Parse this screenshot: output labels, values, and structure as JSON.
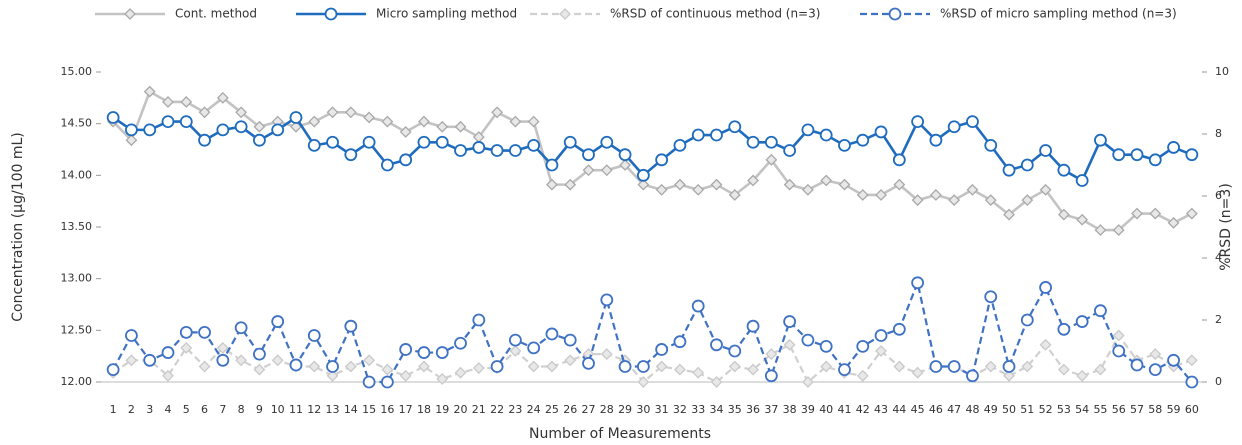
{
  "chart_data": {
    "type": "line",
    "x_label": "Number of Measurements",
    "y_label": "Concentration (µg/100 mL)",
    "y2_label": "%RSD (n=3)",
    "categories": [
      "1",
      "2",
      "3",
      "4",
      "5",
      "6",
      "7",
      "8",
      "9",
      "10",
      "11",
      "12",
      "13",
      "14",
      "15",
      "16",
      "17",
      "18",
      "19",
      "20",
      "21",
      "22",
      "23",
      "24",
      "25",
      "26",
      "27",
      "28",
      "29",
      "30",
      "31",
      "32",
      "33",
      "34",
      "35",
      "36",
      "37",
      "38",
      "39",
      "40",
      "41",
      "42",
      "43",
      "44",
      "45",
      "46",
      "47",
      "48",
      "49",
      "50",
      "51",
      "52",
      "53",
      "54",
      "55",
      "56",
      "57",
      "58",
      "59",
      "60"
    ],
    "ylim": [
      12,
      15
    ],
    "yticks": [
      {
        "value": 12,
        "label": "12.00"
      },
      {
        "value": 12.5,
        "label": "12.50"
      },
      {
        "value": 13,
        "label": "13.00"
      },
      {
        "value": 13.5,
        "label": "13.50"
      },
      {
        "value": 14,
        "label": "14.00"
      },
      {
        "value": 14.5,
        "label": "14.50"
      },
      {
        "value": 15,
        "label": "15.00"
      }
    ],
    "y2lim": [
      0,
      10
    ],
    "y2ticks": [
      0,
      2,
      4,
      6,
      8,
      10
    ],
    "series": [
      {
        "name": "Cont. method",
        "color": "#c3c3c3",
        "marker": "diamond",
        "dashed": false,
        "axis": "y",
        "values": [
          14.52,
          14.34,
          14.81,
          14.71,
          14.71,
          14.61,
          14.75,
          14.61,
          14.47,
          14.52,
          14.47,
          14.52,
          14.61,
          14.61,
          14.56,
          14.52,
          14.42,
          14.52,
          14.47,
          14.47,
          14.37,
          14.61,
          14.52,
          14.52,
          13.91,
          13.91,
          14.05,
          14.05,
          14.1,
          13.91,
          13.86,
          13.91,
          13.86,
          13.91,
          13.81,
          13.95,
          14.15,
          13.91,
          13.86,
          13.95,
          13.91,
          13.81,
          13.81,
          13.91,
          13.76,
          13.81,
          13.76,
          13.86,
          13.76,
          13.62,
          13.76,
          13.86,
          13.62,
          13.57,
          13.47,
          13.47,
          13.63,
          13.63,
          13.54,
          13.63
        ]
      },
      {
        "name": "Micro sampling method",
        "color": "#1f6cbf",
        "marker": "circle",
        "dashed": false,
        "axis": "y",
        "values": [
          14.56,
          14.44,
          14.44,
          14.52,
          14.52,
          14.34,
          14.44,
          14.47,
          14.34,
          14.44,
          14.56,
          14.29,
          14.32,
          14.2,
          14.32,
          14.1,
          14.15,
          14.32,
          14.32,
          14.24,
          14.27,
          14.24,
          14.24,
          14.29,
          14.1,
          14.32,
          14.2,
          14.32,
          14.2,
          14.0,
          14.15,
          14.29,
          14.39,
          14.39,
          14.47,
          14.32,
          14.32,
          14.24,
          14.44,
          14.39,
          14.29,
          14.34,
          14.42,
          14.15,
          14.52,
          14.34,
          14.47,
          14.52,
          14.29,
          14.05,
          14.1,
          14.24,
          14.05,
          13.95,
          14.34,
          14.2,
          14.2,
          14.15,
          14.27,
          14.2
        ]
      },
      {
        "name": "%RSD of continuous method (n=3)",
        "color": "#d0d0d0",
        "marker": "diamond",
        "dashed": true,
        "axis": "y2",
        "values": [
          0.3,
          0.7,
          0.7,
          0.2,
          1.1,
          0.5,
          1.1,
          0.7,
          0.4,
          0.7,
          0.5,
          0.5,
          0.2,
          0.5,
          0.7,
          0.4,
          0.2,
          0.5,
          0.1,
          0.3,
          0.45,
          0.45,
          1.0,
          0.5,
          0.5,
          0.7,
          0.9,
          0.9,
          0.7,
          0,
          0.5,
          0.4,
          0.3,
          0,
          0.5,
          0.4,
          0.9,
          1.2,
          0,
          0.5,
          0.3,
          0.2,
          1.0,
          0.5,
          0.3,
          0.5,
          0.5,
          0.2,
          0.5,
          0.2,
          0.5,
          1.2,
          0.4,
          0.2,
          0.4,
          1.5,
          0.7,
          0.9,
          0.5,
          0.7
        ]
      },
      {
        "name": "%RSD of micro sampling method (n=3)",
        "color": "#3f72c4",
        "marker": "circle",
        "dashed": true,
        "axis": "y2",
        "values": [
          0.4,
          1.5,
          0.7,
          0.95,
          1.6,
          1.6,
          0.7,
          1.75,
          0.9,
          1.95,
          0.55,
          1.5,
          0.5,
          1.8,
          0,
          0,
          1.05,
          0.95,
          0.95,
          1.25,
          2.0,
          0.5,
          1.35,
          1.1,
          1.55,
          1.35,
          0.6,
          2.65,
          0.5,
          0.5,
          1.05,
          1.3,
          2.45,
          1.2,
          1.0,
          1.8,
          0.2,
          1.95,
          1.35,
          1.15,
          0.4,
          1.15,
          1.5,
          1.7,
          3.2,
          0.5,
          0.5,
          0.2,
          2.75,
          0.5,
          2.0,
          3.05,
          1.7,
          1.95,
          2.3,
          1.0,
          0.55,
          0.4,
          0.7,
          0
        ]
      }
    ]
  }
}
